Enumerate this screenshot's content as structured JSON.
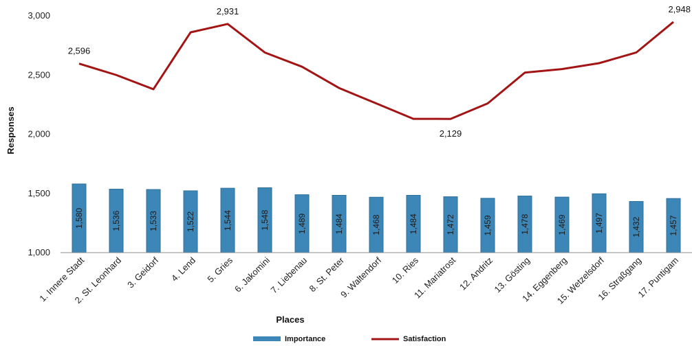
{
  "chart_data": {
    "type": "bar",
    "xlabel": "Places",
    "ylabel": "Responses",
    "ylim": [
      1000,
      3000
    ],
    "yticks": [
      "1,000",
      "1,500",
      "2,000",
      "2,500",
      "3,000"
    ],
    "ytick_values": [
      1000,
      1500,
      2000,
      2500,
      3000
    ],
    "grid": false,
    "legend_position": "bottom",
    "categories": [
      "1. Innere Stadt",
      "2. St. Leonhard",
      "3. Geidorf",
      "4. Lend",
      "5. Gries",
      "6. Jakomini",
      "7. Liebenau",
      "8. St. Peter",
      "9. Waltendorf",
      "10. Ries",
      "11. Mariatrost",
      "12. Andritz",
      "13. Gösting",
      "14. Eggenberg",
      "15. Wetzelsdorf",
      "16. Straßgang",
      "17. Puntigam"
    ],
    "series": [
      {
        "name": "Importance",
        "type": "bar",
        "color": "#3d87b8",
        "values": [
          1580,
          1536,
          1533,
          1522,
          1544,
          1548,
          1489,
          1484,
          1468,
          1484,
          1472,
          1459,
          1478,
          1469,
          1497,
          1432,
          1457
        ],
        "value_labels": [
          "1,580",
          "1,536",
          "1,533",
          "1,522",
          "1,544",
          "1,548",
          "1,489",
          "1,484",
          "1,468",
          "1,484",
          "1,472",
          "1,459",
          "1,478",
          "1,469",
          "1,497",
          "1,432",
          "1,457"
        ]
      },
      {
        "name": "Satisfaction",
        "type": "line",
        "color": "#a31515",
        "values": [
          2596,
          2500,
          2380,
          2860,
          2931,
          2690,
          2570,
          2390,
          2260,
          2130,
          2129,
          2260,
          2520,
          2550,
          2600,
          2690,
          2948
        ],
        "labeled_points": [
          {
            "index": 0,
            "text": "2,596"
          },
          {
            "index": 4,
            "text": "2,931"
          },
          {
            "index": 10,
            "text": "2,129"
          },
          {
            "index": 16,
            "text": "2,948"
          }
        ]
      }
    ]
  }
}
